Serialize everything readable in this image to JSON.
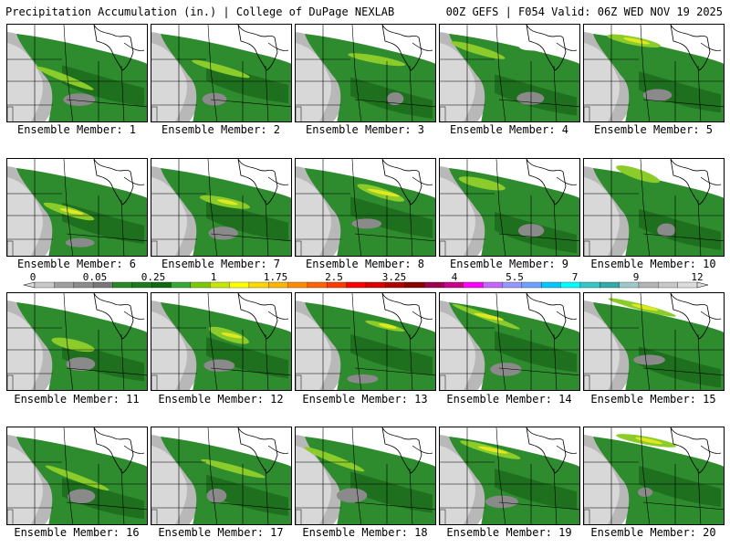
{
  "header": {
    "title": "Precipitation Accumulation (in.) | College of DuPage NEXLAB",
    "run_info": "00Z GEFS | F054 Valid: 06Z WED NOV 19 2025"
  },
  "colorbar": {
    "tick_labels": [
      "0",
      "0.05",
      "0.25",
      "1",
      "1.75",
      "2.5",
      "3.25",
      "4",
      "5.5",
      "7",
      "9",
      "12"
    ],
    "colors": [
      "#c8c8c8",
      "#a0a0a0",
      "#8c8c8c",
      "#787878",
      "#2a8a2a",
      "#1e7a1e",
      "#106a10",
      "#39a639",
      "#7ec800",
      "#c8e600",
      "#ffff00",
      "#ffd700",
      "#ffb400",
      "#ff8c00",
      "#ff6400",
      "#ff3c00",
      "#ff0000",
      "#dc0000",
      "#b40000",
      "#8c0000",
      "#a00050",
      "#c8008c",
      "#ff00ff",
      "#c864ff",
      "#9696ff",
      "#6ea0ff",
      "#00c8ff",
      "#00ffff",
      "#32c8c8",
      "#32aaaa",
      "#a0c8c8",
      "#b4b4b4",
      "#c8c8c8",
      "#dcdcdc"
    ]
  },
  "members": [
    {
      "label": "Ensemble Member: 1"
    },
    {
      "label": "Ensemble Member: 2"
    },
    {
      "label": "Ensemble Member: 3"
    },
    {
      "label": "Ensemble Member: 4"
    },
    {
      "label": "Ensemble Member: 5"
    },
    {
      "label": "Ensemble Member: 6"
    },
    {
      "label": "Ensemble Member: 7"
    },
    {
      "label": "Ensemble Member: 8"
    },
    {
      "label": "Ensemble Member: 9"
    },
    {
      "label": "Ensemble Member: 10"
    },
    {
      "label": "Ensemble Member: 11"
    },
    {
      "label": "Ensemble Member: 12"
    },
    {
      "label": "Ensemble Member: 13"
    },
    {
      "label": "Ensemble Member: 14"
    },
    {
      "label": "Ensemble Member: 15"
    },
    {
      "label": "Ensemble Member: 16"
    },
    {
      "label": "Ensemble Member: 17"
    },
    {
      "label": "Ensemble Member: 18"
    },
    {
      "label": "Ensemble Member: 19"
    },
    {
      "label": "Ensemble Member: 20"
    }
  ]
}
